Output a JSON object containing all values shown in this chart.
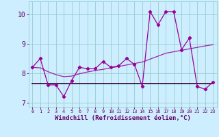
{
  "x": [
    0,
    1,
    2,
    3,
    4,
    5,
    6,
    7,
    8,
    9,
    10,
    11,
    12,
    13,
    14,
    15,
    16,
    17,
    18,
    19,
    20,
    21,
    22,
    23
  ],
  "y_main": [
    8.2,
    8.5,
    7.6,
    7.6,
    7.2,
    7.75,
    8.2,
    8.15,
    8.15,
    8.4,
    8.2,
    8.25,
    8.5,
    8.3,
    7.55,
    10.1,
    9.65,
    10.1,
    10.1,
    8.8,
    9.2,
    7.55,
    7.45,
    7.7
  ],
  "y_flat": [
    7.65,
    7.65,
    7.65,
    7.65,
    7.65,
    7.65,
    7.65,
    7.65,
    7.65,
    7.65,
    7.65,
    7.65,
    7.65,
    7.65,
    7.65,
    7.65,
    7.65,
    7.65,
    7.65,
    7.65,
    7.65,
    7.65,
    7.65,
    7.65
  ],
  "y_diag": [
    8.2,
    8.18,
    8.05,
    7.95,
    7.88,
    7.9,
    7.98,
    8.04,
    8.09,
    8.13,
    8.18,
    8.23,
    8.28,
    8.33,
    8.38,
    8.48,
    8.58,
    8.68,
    8.73,
    8.78,
    8.83,
    8.88,
    8.93,
    8.97
  ],
  "main_color": "#990099",
  "flat_color": "#330033",
  "diag_color": "#990099",
  "bg_color": "#cceeff",
  "grid_color": "#99cccc",
  "text_color": "#660066",
  "xlabel": "Windchill (Refroidissement éolien,°C)",
  "ylim": [
    6.85,
    10.45
  ],
  "yticks": [
    7,
    8,
    9,
    10
  ],
  "xticks": [
    0,
    1,
    2,
    3,
    4,
    5,
    6,
    7,
    8,
    9,
    10,
    11,
    12,
    13,
    14,
    15,
    16,
    17,
    18,
    19,
    20,
    21,
    22,
    23
  ]
}
